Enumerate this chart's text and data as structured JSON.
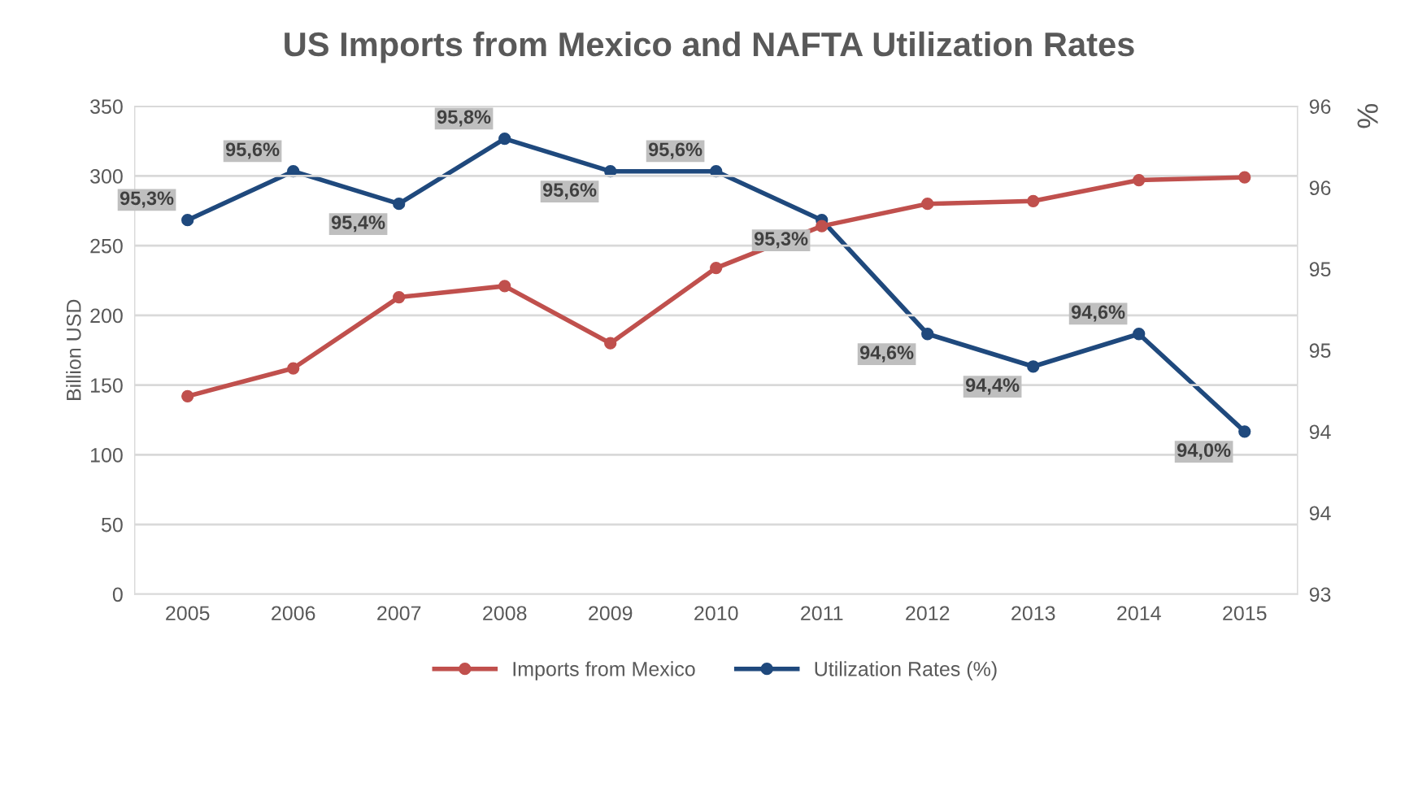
{
  "chart_data": {
    "type": "line",
    "title": "US Imports from Mexico and NAFTA Utilization Rates",
    "ylabel": "Billion USD",
    "y2label": "%",
    "categories": [
      "2005",
      "2006",
      "2007",
      "2008",
      "2009",
      "2010",
      "2011",
      "2012",
      "2013",
      "2014",
      "2015"
    ],
    "series": [
      {
        "name": "Imports from Mexico",
        "color": "#c0504d",
        "values": [
          142,
          162,
          213,
          221,
          180,
          234,
          264,
          280,
          282,
          297,
          299
        ]
      },
      {
        "name": "Utilization Rates (%)",
        "color": "#1f497d",
        "axis": "y2",
        "values": [
          95.3,
          95.6,
          95.4,
          95.8,
          95.6,
          95.6,
          95.3,
          94.6,
          94.4,
          94.6,
          94.0
        ],
        "value_labels": [
          "95,3%",
          "95,6%",
          "95,4%",
          "95,8%",
          "95,6%",
          "95,6%",
          "95,3%",
          "94,6%",
          "94,4%",
          "94,6%",
          "94,0%"
        ]
      }
    ],
    "ylim": [
      0,
      350
    ],
    "yticks": [
      0,
      50,
      100,
      150,
      200,
      250,
      300,
      350
    ],
    "y2lim": [
      93,
      96
    ],
    "y2ticks": [
      93,
      {
        "value": 93.5,
        "label": "94"
      },
      94,
      {
        "value": 94.5,
        "label": "95"
      },
      95,
      {
        "value": 95.5,
        "label": "96"
      },
      96
    ],
    "grid": "y",
    "legend": "bottom",
    "marker": "circle",
    "line_style": "solid"
  }
}
